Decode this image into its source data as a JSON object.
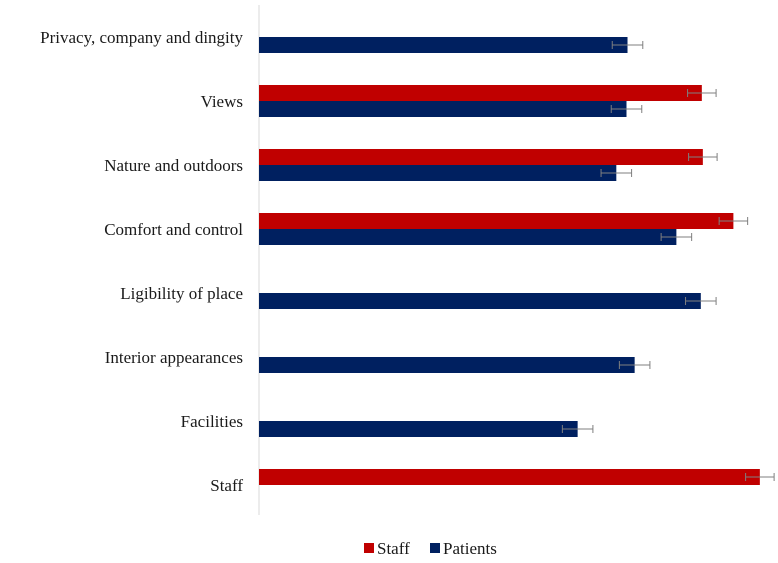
{
  "chart_data": {
    "type": "bar",
    "orientation": "horizontal",
    "categories": [
      "Privacy, company and dingity",
      "Views",
      "Nature and outdoors",
      "Comfort and control",
      "Ligibility of place",
      "Interior appearances",
      "Facilities",
      "Staff"
    ],
    "series": [
      {
        "name": "Staff",
        "color": "#c00000",
        "values": [
          null,
          4.35,
          4.36,
          4.66,
          null,
          null,
          null,
          4.92
        ],
        "errors": [
          null,
          0.14,
          0.14,
          0.14,
          null,
          null,
          null,
          0.14
        ]
      },
      {
        "name": "Patients",
        "color": "#002060",
        "values": [
          3.62,
          3.61,
          3.51,
          4.1,
          4.34,
          3.69,
          3.13,
          null
        ],
        "errors": [
          0.15,
          0.15,
          0.15,
          0.15,
          0.15,
          0.15,
          0.15,
          null
        ]
      }
    ],
    "xlim": [
      0,
      5
    ],
    "grid": false,
    "legend_position": "bottom"
  }
}
